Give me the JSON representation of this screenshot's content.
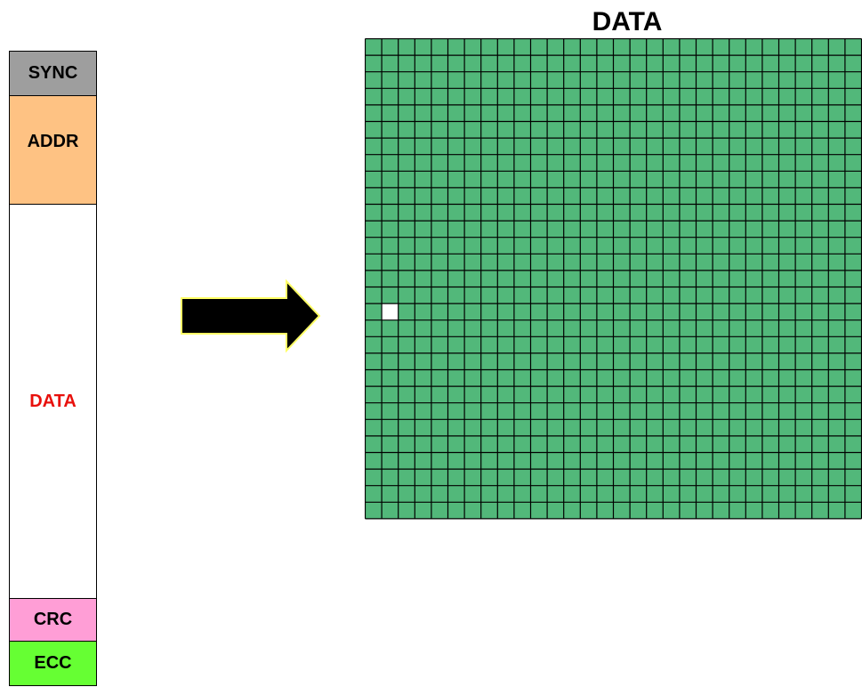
{
  "frame_stack": {
    "segments": [
      {
        "label": "SYNC",
        "color": "#9e9e9e"
      },
      {
        "label": "ADDR",
        "color": "#fec283"
      },
      {
        "label": "DATA",
        "color": "#ffffff",
        "text_color": "#e8100c"
      },
      {
        "label": "CRC",
        "color": "#ff9ed6"
      },
      {
        "label": "ECC",
        "color": "#66ff33"
      }
    ]
  },
  "arrow": {
    "fill": "#000000",
    "outline": "#ffff66"
  },
  "data_grid": {
    "title": "DATA",
    "cell_color": "#52b87a",
    "highlight_color": "#ffffff",
    "highlight_cell": {
      "row": 16,
      "col": 1
    }
  }
}
